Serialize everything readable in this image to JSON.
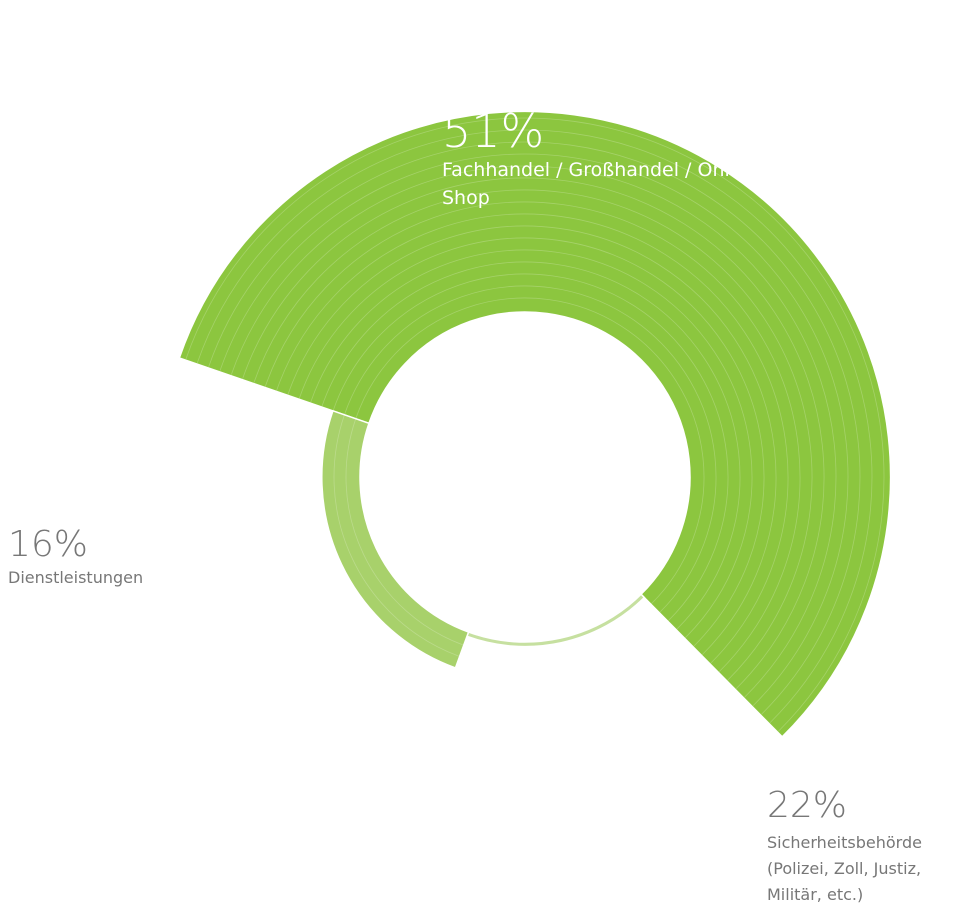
{
  "chart_data": {
    "type": "pie",
    "title": "",
    "series": [
      {
        "values": [
          51,
          16,
          22
        ],
        "labels": [
          "Fachhandel / Großhandel / Online-Shop",
          "Dienstleistungen",
          "Sicherheitsbehörde (Polizei, Zoll, Justiz, Militär, etc.)"
        ]
      }
    ],
    "slices": [
      {
        "percent_label": "51%",
        "label": "Fachhandel / Großhandel / Online-Shop",
        "value": 51,
        "color": "#8cc63f"
      },
      {
        "percent_label": "16%",
        "label": "Dienstleistungen",
        "value": 16,
        "color": "#c6e0a0"
      },
      {
        "percent_label": "22%",
        "label": "Sicherheitsbehörde (Polizei, Zoll, Justiz, Militär, etc.)",
        "value": 22,
        "color": "#a8d16b"
      }
    ],
    "legend": "none",
    "grid": false
  }
}
